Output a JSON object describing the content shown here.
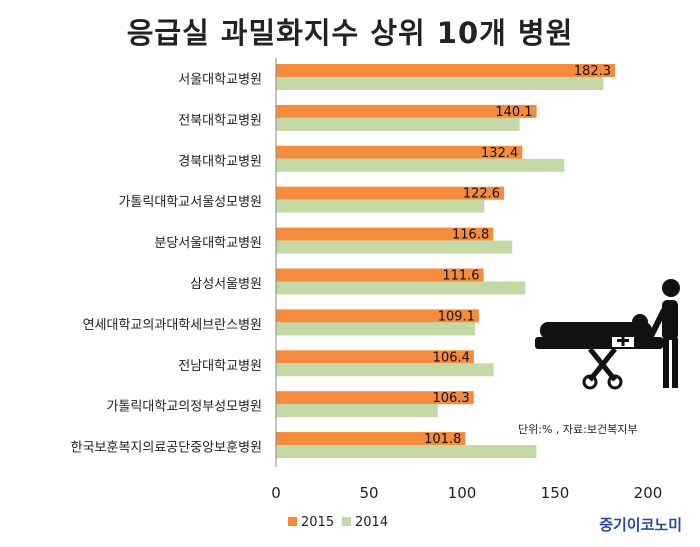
{
  "chart_data": {
    "type": "bar",
    "orientation": "horizontal",
    "title": "응급실 과밀화지수 상위 10개 병원",
    "categories": [
      "서울대학교병원",
      "전북대학교병원",
      "경북대학교병원",
      "가톨릭대학교서울성모병원",
      "분당서울대학교병원",
      "삼성서울병원",
      "연세대학교의과대학세브란스병원",
      "전남대학교병원",
      "가톨릭대학교의정부성모병원",
      "한국보훈복지의료공단중앙보훈병원"
    ],
    "series": [
      {
        "name": "2015",
        "color": "#f58b3c",
        "values": [
          182.3,
          140.1,
          132.4,
          122.6,
          116.8,
          111.6,
          109.1,
          106.4,
          106.3,
          101.8
        ],
        "labels": [
          "182.3",
          "140.1",
          "132.4",
          "122.6",
          "116.8",
          "111.6",
          "109.1",
          "106.4",
          "106.3",
          "101.8"
        ]
      },
      {
        "name": "2014",
        "color": "#c5d9a6",
        "values": [
          176,
          131,
          155,
          112,
          127,
          134,
          107,
          117,
          87,
          140
        ]
      }
    ],
    "xlim": [
      0,
      200
    ],
    "xticks": [
      "0",
      "50",
      "100",
      "150",
      "200"
    ],
    "grid": false,
    "legend_position": "bottom-left",
    "annotation": "단위:% , 자료:보건복지부"
  },
  "brand": "중기이코노미",
  "icon": "stretcher-patient-icon"
}
